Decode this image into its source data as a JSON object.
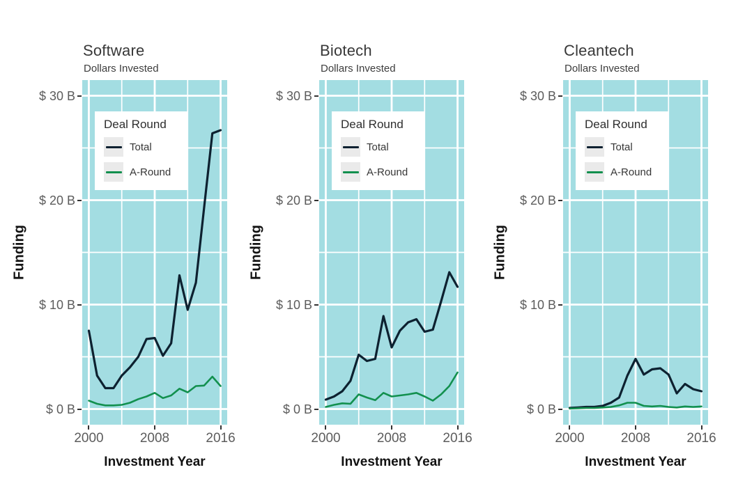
{
  "figure": {
    "background": "#ffffff"
  },
  "labels": {
    "subtitle": "Dollars Invested",
    "y_axis_title": "Funding",
    "x_axis_title": "Investment Year",
    "legend_title": "Deal Round",
    "legend_items": [
      {
        "label": "Total",
        "color": "#0d2130"
      },
      {
        "label": "A-Round",
        "color": "#12904e"
      }
    ]
  },
  "axis": {
    "xlim": [
      2000,
      2016
    ],
    "ylim": [
      0,
      30
    ],
    "x_tick_values": [
      2000,
      2008,
      2016
    ],
    "x_tick_labels": [
      "2000",
      "2008",
      "2016"
    ],
    "y_tick_values": [
      30,
      20,
      10,
      0
    ],
    "y_tick_labels": [
      "$ 30 B",
      "$ 20 B",
      "$ 10 B",
      "$ 0 B"
    ],
    "x_minor_gridlines": [
      2004,
      2012
    ],
    "y_minor_gridlines": [
      5,
      15,
      25
    ],
    "grid": "on",
    "legend_position": "top-left-inside"
  },
  "colors": {
    "panel_background": "#a3dde2",
    "gridline": "#ffffff",
    "total_line": "#0d2130",
    "a_round_line": "#12904e",
    "tick_mark": "#333333",
    "tick_label_text": "#5c5c5c",
    "axis_title_text": "#121212",
    "chart_title_text": "#383838",
    "legend_swatch": "#eaeaea"
  },
  "chart_data": [
    {
      "type": "line",
      "title": "Software",
      "subtitle": "Dollars Invested",
      "xlabel": "Investment Year",
      "ylabel": "Funding",
      "xlim": [
        2000,
        2016
      ],
      "ylim": [
        0,
        30
      ],
      "x": [
        2000,
        2001,
        2002,
        2003,
        2004,
        2005,
        2006,
        2007,
        2008,
        2009,
        2010,
        2011,
        2012,
        2013,
        2014,
        2015,
        2016
      ],
      "series": [
        {
          "name": "Total",
          "color": "#0d2130",
          "values": [
            7.5,
            3.2,
            2.0,
            2.0,
            3.2,
            4.0,
            5.0,
            6.7,
            6.8,
            5.1,
            6.3,
            12.8,
            9.5,
            12.1,
            19.3,
            26.4,
            26.7
          ]
        },
        {
          "name": "A-Round",
          "color": "#12904e",
          "values": [
            0.8,
            0.5,
            0.35,
            0.35,
            0.4,
            0.6,
            0.95,
            1.2,
            1.55,
            1.05,
            1.3,
            1.95,
            1.6,
            2.2,
            2.25,
            3.1,
            2.2
          ]
        }
      ]
    },
    {
      "type": "line",
      "title": "Biotech",
      "subtitle": "Dollars Invested",
      "xlabel": "Investment Year",
      "ylabel": "Funding",
      "xlim": [
        2000,
        2016
      ],
      "ylim": [
        0,
        30
      ],
      "x": [
        2000,
        2001,
        2002,
        2003,
        2004,
        2005,
        2006,
        2007,
        2008,
        2009,
        2010,
        2011,
        2012,
        2013,
        2014,
        2015,
        2016
      ],
      "series": [
        {
          "name": "Total",
          "color": "#0d2130",
          "values": [
            0.9,
            1.2,
            1.7,
            2.7,
            5.2,
            4.6,
            4.8,
            8.9,
            5.9,
            7.5,
            8.3,
            8.6,
            7.4,
            7.6,
            10.3,
            13.1,
            11.7
          ]
        },
        {
          "name": "A-Round",
          "color": "#12904e",
          "values": [
            0.2,
            0.4,
            0.55,
            0.5,
            1.4,
            1.1,
            0.85,
            1.55,
            1.2,
            1.3,
            1.4,
            1.55,
            1.2,
            0.8,
            1.4,
            2.2,
            3.5
          ]
        }
      ]
    },
    {
      "type": "line",
      "title": "Cleantech",
      "subtitle": "Dollars Invested",
      "xlabel": "Investment Year",
      "ylabel": "Funding",
      "xlim": [
        2000,
        2016
      ],
      "ylim": [
        0,
        30
      ],
      "x": [
        2000,
        2001,
        2002,
        2003,
        2004,
        2005,
        2006,
        2007,
        2008,
        2009,
        2010,
        2011,
        2012,
        2013,
        2014,
        2015,
        2016
      ],
      "series": [
        {
          "name": "Total",
          "color": "#0d2130",
          "values": [
            0.1,
            0.15,
            0.2,
            0.2,
            0.3,
            0.6,
            1.1,
            3.2,
            4.8,
            3.3,
            3.8,
            3.9,
            3.3,
            1.5,
            2.4,
            1.9,
            1.7
          ]
        },
        {
          "name": "A-Round",
          "color": "#12904e",
          "values": [
            0.05,
            0.07,
            0.1,
            0.1,
            0.15,
            0.2,
            0.35,
            0.6,
            0.6,
            0.3,
            0.25,
            0.3,
            0.2,
            0.15,
            0.25,
            0.2,
            0.25
          ]
        }
      ]
    }
  ]
}
